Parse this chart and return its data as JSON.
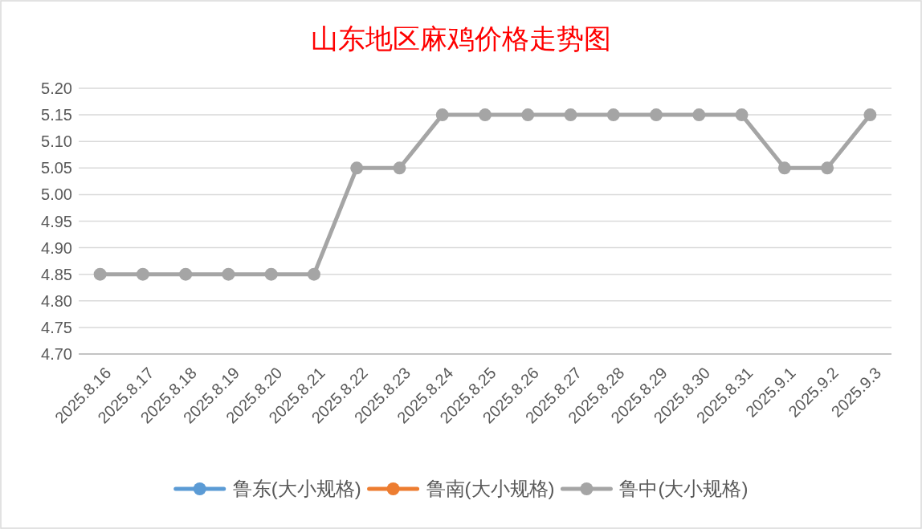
{
  "chart_data": {
    "type": "line",
    "title": "山东地区麻鸡价格走势图",
    "categories": [
      "2025.8.16",
      "2025.8.17",
      "2025.8.18",
      "2025.8.19",
      "2025.8.20",
      "2025.8.21",
      "2025.8.22",
      "2025.8.23",
      "2025.8.24",
      "2025.8.25",
      "2025.8.26",
      "2025.8.27",
      "2025.8.28",
      "2025.8.29",
      "2025.8.30",
      "2025.8.31",
      "2025.9.1",
      "2025.9.2",
      "2025.9.3"
    ],
    "series": [
      {
        "name": "鲁东(大小规格)",
        "color": "#5b9bd5",
        "values": [
          null,
          null,
          null,
          null,
          null,
          null,
          null,
          null,
          null,
          null,
          null,
          null,
          null,
          null,
          null,
          null,
          null,
          null,
          null
        ]
      },
      {
        "name": "鲁南(大小规格)",
        "color": "#ed7d31",
        "values": [
          null,
          null,
          null,
          null,
          null,
          null,
          null,
          null,
          null,
          null,
          null,
          null,
          null,
          null,
          null,
          null,
          null,
          null,
          null
        ]
      },
      {
        "name": "鲁中(大小规格)",
        "color": "#a5a5a5",
        "values": [
          4.85,
          4.85,
          4.85,
          4.85,
          4.85,
          4.85,
          5.05,
          5.05,
          5.15,
          5.15,
          5.15,
          5.15,
          5.15,
          5.15,
          5.15,
          5.15,
          5.05,
          5.05,
          5.15
        ]
      }
    ],
    "ylim": [
      4.7,
      5.2
    ],
    "yticks": [
      {
        "value": 4.7,
        "label": "4.70"
      },
      {
        "value": 4.75,
        "label": "4.75"
      },
      {
        "value": 4.8,
        "label": "4.80"
      },
      {
        "value": 4.85,
        "label": "4.85"
      },
      {
        "value": 4.9,
        "label": "4.90"
      },
      {
        "value": 4.95,
        "label": "4.95"
      },
      {
        "value": 5.0,
        "label": "5.00"
      },
      {
        "value": 5.05,
        "label": "5.05"
      },
      {
        "value": 5.1,
        "label": "5.10"
      },
      {
        "value": 5.15,
        "label": "5.15"
      },
      {
        "value": 5.2,
        "label": "5.20"
      }
    ],
    "grid": "y",
    "legend": "bottom",
    "marker": "circle",
    "line_style": "solid"
  }
}
